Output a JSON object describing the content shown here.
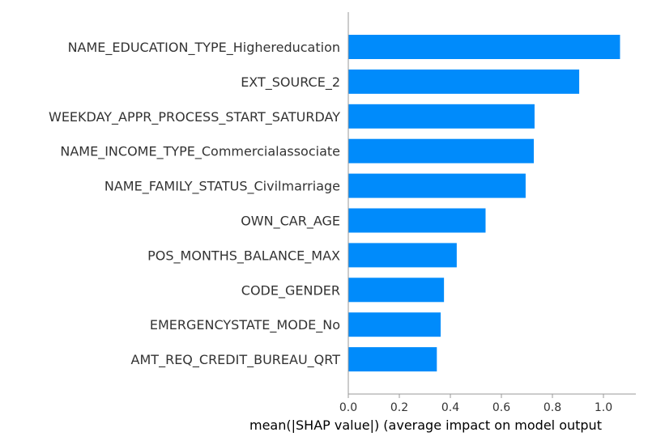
{
  "chart_data": {
    "type": "bar",
    "orientation": "horizontal",
    "title": "",
    "xlabel": "mean(|SHAP value|) (average impact on model output",
    "ylabel": "",
    "categories": [
      "NAME_EDUCATION_TYPE_Highereducation",
      "EXT_SOURCE_2",
      "WEEKDAY_APPR_PROCESS_START_SATURDAY",
      "NAME_INCOME_TYPE_Commercialassociate",
      "NAME_FAMILY_STATUS_Civilmarriage",
      "OWN_CAR_AGE",
      "POS_MONTHS_BALANCE_MAX",
      "CODE_GENDER",
      "EMERGENCYSTATE_MODE_No",
      "AMT_REQ_CREDIT_BUREAU_QRT"
    ],
    "values": [
      1.065,
      0.905,
      0.73,
      0.727,
      0.695,
      0.538,
      0.425,
      0.375,
      0.362,
      0.347
    ],
    "xlim": [
      0,
      1.12
    ],
    "xticks": [
      "0.0",
      "0.2",
      "0.4",
      "0.6",
      "0.8",
      "1.0"
    ],
    "grid": false,
    "bar_color": "#008bfb",
    "axis_color": "#999999"
  }
}
